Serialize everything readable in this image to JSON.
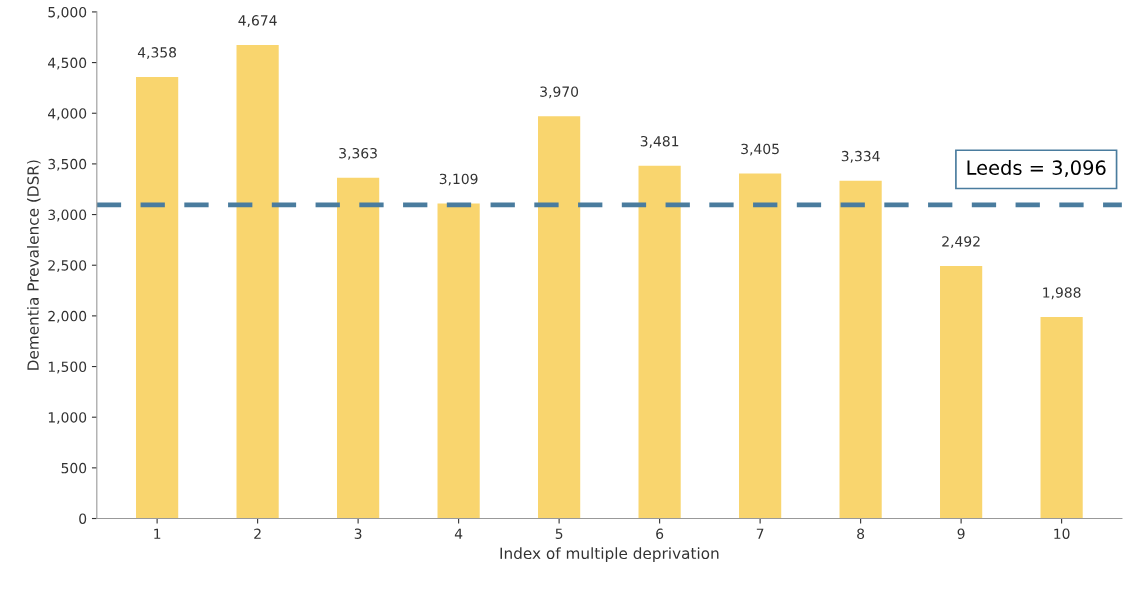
{
  "chart_data": {
    "type": "bar",
    "xlabel": "Index of multiple deprivation",
    "ylabel": "Dementia Prevalence (DSR)",
    "categories": [
      "1",
      "2",
      "3",
      "4",
      "5",
      "6",
      "7",
      "8",
      "9",
      "10"
    ],
    "values": [
      4358,
      4674,
      3363,
      3109,
      3970,
      3481,
      3405,
      3334,
      2492,
      1988
    ],
    "value_labels": [
      "4,358",
      "4,674",
      "3,363",
      "3,109",
      "3,970",
      "3,481",
      "3,405",
      "3,334",
      "2,492",
      "1,988"
    ],
    "color": "#f9d56e",
    "ylim": [
      0,
      5000
    ],
    "yticks": [
      0,
      500,
      {
        "value": 1000,
        "label": "1,000"
      },
      {
        "value": 1500,
        "label": "1,500"
      },
      {
        "value": 2000,
        "label": "2,000"
      },
      {
        "value": 2500,
        "label": "2,500"
      },
      {
        "value": 3000,
        "label": "3,000"
      },
      {
        "value": 3500,
        "label": "3,500"
      },
      {
        "value": 4000,
        "label": "4,000"
      },
      {
        "value": 4500,
        "label": "4,500"
      },
      {
        "value": 5000,
        "label": "5,000"
      }
    ],
    "ref_lines": [
      {
        "axis": "y",
        "value": 3096,
        "label": "Leeds = 3,096",
        "color": "#4a7c9e",
        "line_style": "dashed"
      }
    ],
    "grid": false,
    "legend": false
  }
}
